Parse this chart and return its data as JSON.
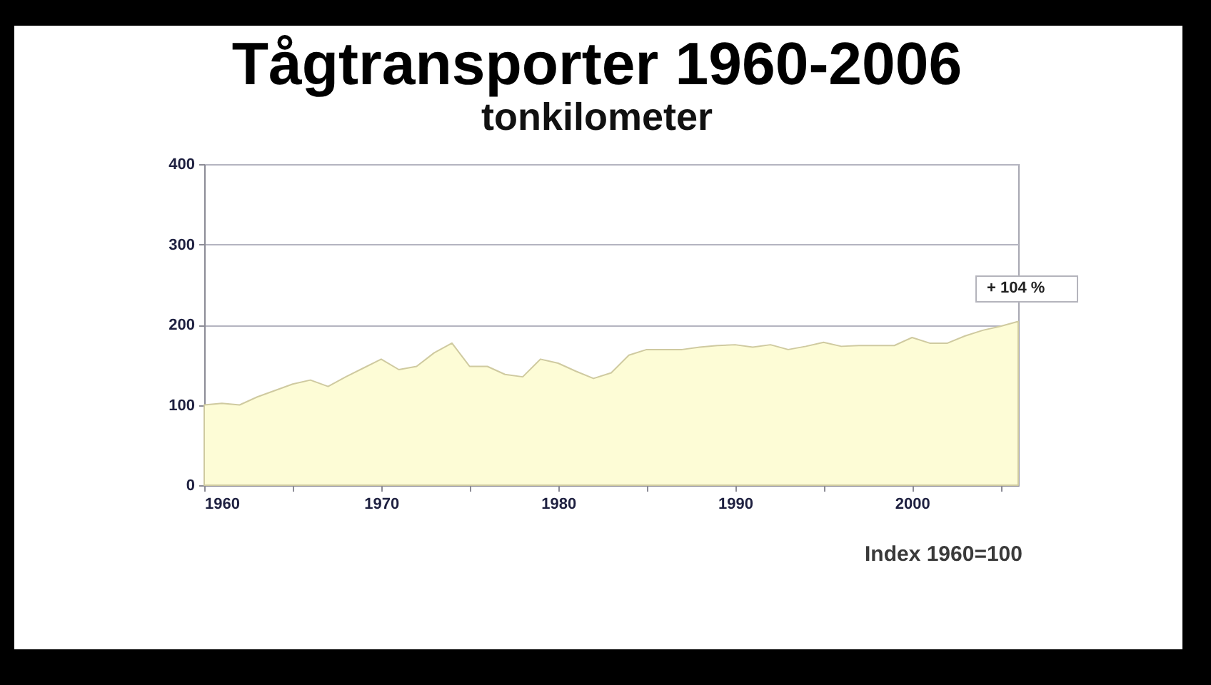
{
  "chart_data": {
    "type": "area",
    "title": "Tågtransporter 1960-2006",
    "subtitle": "tonkilometer",
    "x": [
      1960,
      1961,
      1962,
      1963,
      1964,
      1965,
      1966,
      1967,
      1968,
      1969,
      1970,
      1971,
      1972,
      1973,
      1974,
      1975,
      1976,
      1977,
      1978,
      1979,
      1980,
      1981,
      1982,
      1983,
      1984,
      1985,
      1986,
      1987,
      1988,
      1989,
      1990,
      1991,
      1992,
      1993,
      1994,
      1995,
      1996,
      1997,
      1998,
      1999,
      2000,
      2001,
      2002,
      2003,
      2004,
      2005,
      2006
    ],
    "values": [
      100,
      102,
      100,
      110,
      118,
      126,
      131,
      123,
      135,
      146,
      157,
      144,
      148,
      165,
      177,
      148,
      148,
      138,
      135,
      157,
      152,
      142,
      133,
      140,
      162,
      169,
      169,
      169,
      172,
      174,
      175,
      172,
      175,
      169,
      173,
      178,
      173,
      174,
      174,
      174,
      184,
      177,
      177,
      186,
      193,
      198,
      204
    ],
    "color": "#fdfcd6",
    "xlim": [
      1960,
      2006
    ],
    "xticks": [
      1960,
      {
        "value": 1965,
        "label": null
      },
      1970,
      {
        "value": 1975,
        "label": null
      },
      1980,
      {
        "value": 1985,
        "label": null
      },
      1990,
      {
        "value": 1995,
        "label": null
      },
      2000,
      {
        "value": 2005,
        "label": null
      }
    ],
    "ylim": [
      0,
      400
    ],
    "yticks": [
      0,
      100,
      200,
      300,
      400
    ],
    "grid": "y",
    "annotations": [
      {
        "text": "+ 104 %",
        "x": 2006,
        "y": 204
      },
      "Index 1960=100"
    ]
  }
}
